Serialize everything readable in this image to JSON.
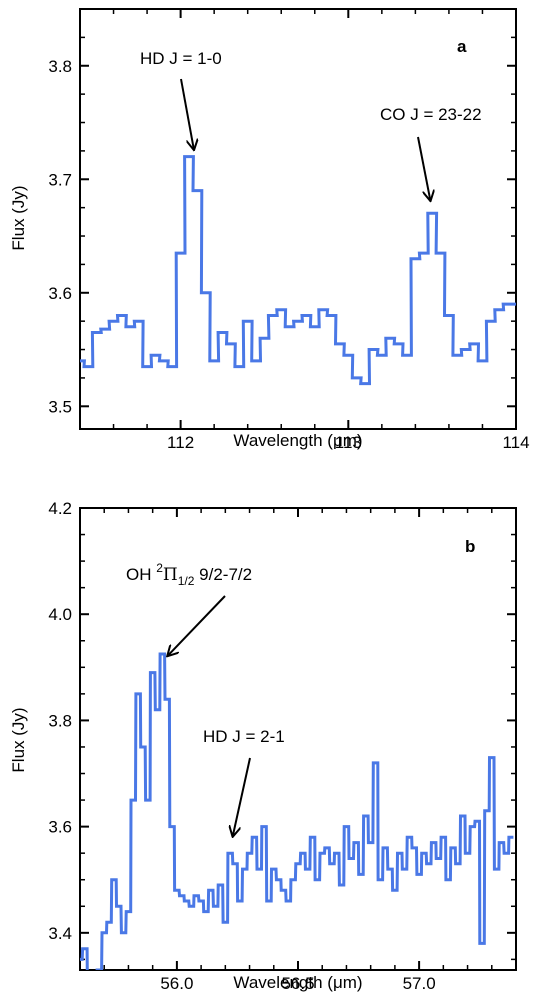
{
  "chart_data": [
    {
      "type": "line",
      "panel_label": "a",
      "xlabel": "Wavelength (μm)",
      "ylabel": "Flux (Jy)",
      "xlim": [
        111.4,
        114.0
      ],
      "ylim": [
        3.48,
        3.85
      ],
      "xticks": [
        112,
        113,
        114
      ],
      "yticks": [
        3.5,
        3.6,
        3.7,
        3.8
      ],
      "step": 0.0525,
      "series": [
        {
          "color": "#4a78e6",
          "x": [
            111.4,
            111.45,
            111.5,
            111.55,
            111.6,
            111.65,
            111.7,
            111.75,
            111.8,
            111.85,
            111.9,
            111.95,
            112.0,
            112.05,
            112.1,
            112.15,
            112.2,
            112.25,
            112.3,
            112.35,
            112.4,
            112.45,
            112.5,
            112.55,
            112.6,
            112.65,
            112.7,
            112.75,
            112.8,
            112.85,
            112.9,
            112.95,
            113.0,
            113.05,
            113.1,
            113.15,
            113.2,
            113.25,
            113.3,
            113.35,
            113.4,
            113.45,
            113.5,
            113.55,
            113.6,
            113.65,
            113.7,
            113.75,
            113.8,
            113.85,
            113.9,
            113.95,
            114.0
          ],
          "y": [
            3.54,
            3.535,
            3.565,
            3.568,
            3.575,
            3.58,
            3.57,
            3.575,
            3.535,
            3.545,
            3.54,
            3.535,
            3.635,
            3.72,
            3.69,
            3.6,
            3.54,
            3.565,
            3.555,
            3.535,
            3.575,
            3.54,
            3.56,
            3.58,
            3.585,
            3.57,
            3.575,
            3.58,
            3.57,
            3.585,
            3.58,
            3.555,
            3.545,
            3.525,
            3.52,
            3.55,
            3.545,
            3.56,
            3.555,
            3.545,
            3.63,
            3.635,
            3.67,
            3.635,
            3.58,
            3.545,
            3.55,
            3.555,
            3.54,
            3.575,
            3.585,
            3.59,
            3.59
          ]
        }
      ],
      "annotations": [
        {
          "text": "HD J = 1-0",
          "x": 112.08,
          "y": 3.723
        },
        {
          "text": "CO J = 23-22",
          "x": 113.49,
          "y": 3.678
        }
      ]
    },
    {
      "type": "line",
      "panel_label": "b",
      "xlabel": "Wavelength (μm)",
      "ylabel": "Flux (Jy)",
      "xlim": [
        55.6,
        57.4
      ],
      "ylim": [
        3.33,
        4.2
      ],
      "xticks": [
        56.0,
        56.5,
        57.0
      ],
      "yticks": [
        3.4,
        3.6,
        3.8,
        4.0,
        4.2
      ],
      "step": 0.0185,
      "series": [
        {
          "color": "#4a78e6",
          "x": [
            55.6,
            55.62,
            55.64,
            55.66,
            55.68,
            55.7,
            55.72,
            55.74,
            55.76,
            55.78,
            55.8,
            55.82,
            55.84,
            55.86,
            55.88,
            55.9,
            55.92,
            55.94,
            55.96,
            55.98,
            56.0,
            56.02,
            56.04,
            56.06,
            56.08,
            56.1,
            56.12,
            56.14,
            56.16,
            56.18,
            56.2,
            56.22,
            56.24,
            56.26,
            56.28,
            56.3,
            56.32,
            56.34,
            56.36,
            56.38,
            56.4,
            56.42,
            56.44,
            56.46,
            56.48,
            56.5,
            56.52,
            56.54,
            56.56,
            56.58,
            56.6,
            56.62,
            56.64,
            56.66,
            56.68,
            56.7,
            56.72,
            56.74,
            56.76,
            56.78,
            56.8,
            56.82,
            56.84,
            56.86,
            56.88,
            56.9,
            56.92,
            56.94,
            56.96,
            56.98,
            57.0,
            57.02,
            57.04,
            57.06,
            57.08,
            57.1,
            57.12,
            57.14,
            57.16,
            57.18,
            57.2,
            57.22,
            57.24,
            57.26,
            57.28,
            57.3,
            57.32,
            57.34,
            57.36,
            57.38
          ],
          "y": [
            3.35,
            3.37,
            3.3,
            3.3,
            3.33,
            3.4,
            3.42,
            3.5,
            3.45,
            3.4,
            3.44,
            3.65,
            3.85,
            3.75,
            3.65,
            3.89,
            3.82,
            3.925,
            3.84,
            3.6,
            3.48,
            3.47,
            3.46,
            3.45,
            3.47,
            3.46,
            3.44,
            3.48,
            3.45,
            3.49,
            3.42,
            3.55,
            3.53,
            3.46,
            3.52,
            3.55,
            3.58,
            3.52,
            3.6,
            3.46,
            3.52,
            3.5,
            3.48,
            3.46,
            3.5,
            3.53,
            3.55,
            3.52,
            3.58,
            3.5,
            3.55,
            3.56,
            3.53,
            3.55,
            3.49,
            3.6,
            3.54,
            3.57,
            3.51,
            3.62,
            3.57,
            3.72,
            3.5,
            3.56,
            3.52,
            3.48,
            3.55,
            3.52,
            3.58,
            3.56,
            3.51,
            3.55,
            3.53,
            3.57,
            3.54,
            3.58,
            3.5,
            3.56,
            3.53,
            3.62,
            3.55,
            3.6,
            3.61,
            3.38,
            3.63,
            3.73,
            3.52,
            3.57,
            3.55,
            3.58
          ]
        }
      ],
      "annotations": [
        {
          "text_main": "OH ",
          "text_sup": "2",
          "text_pi": "Π",
          "text_sub": "1/2",
          "text_tail": " 9/2-7/2",
          "x": 55.96,
          "y": 3.915
        },
        {
          "text": "HD J = 2-1",
          "x": 56.23,
          "y": 3.575
        }
      ]
    }
  ]
}
